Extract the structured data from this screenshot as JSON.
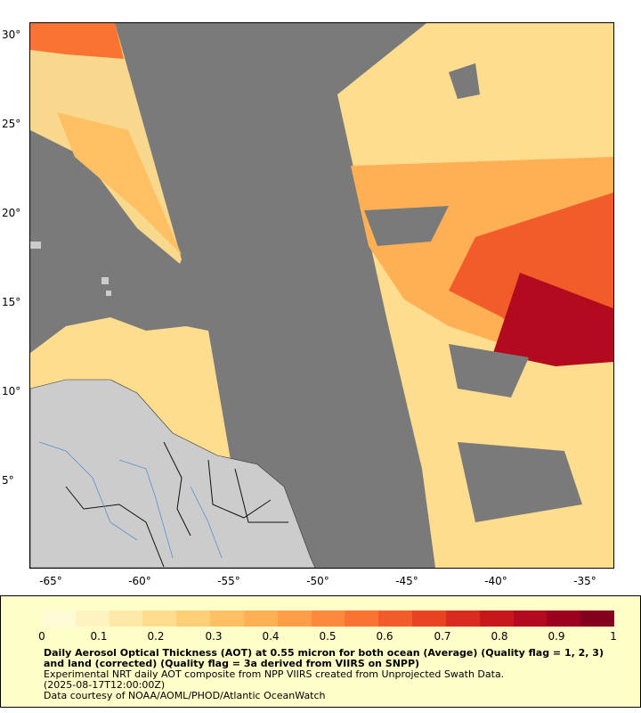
{
  "map": {
    "lat_ticks": [
      "30°",
      "25°",
      "20°",
      "15°",
      "10°",
      "5°"
    ],
    "lon_ticks": [
      "-65°",
      "-60°",
      "-55°",
      "-50°",
      "-45°",
      "-40°",
      "-35°"
    ],
    "colors": {
      "background": "#7a7a7a",
      "land": "#cccccc",
      "rivers": "#5b8fd0",
      "borders": "#111111"
    }
  },
  "legend": {
    "colorbar_ticks": [
      "0",
      "0.1",
      "0.2",
      "0.3",
      "0.4",
      "0.5",
      "0.6",
      "0.7",
      "0.8",
      "0.9",
      "1"
    ],
    "colorbar_colors": [
      "#fffbd6",
      "#fff3c0",
      "#ffe9a8",
      "#ffdd8e",
      "#ffcf78",
      "#ffc064",
      "#ffb055",
      "#ff9e48",
      "#fd8a3c",
      "#f97332",
      "#f25c2a",
      "#e84424",
      "#d92b1f",
      "#c8161d",
      "#b20a1e",
      "#9c0220",
      "#84001f"
    ],
    "title": "Daily Aerosol Optical Thickness (AOT) at 0.55 micron for both ocean (Average) (Quality flag = 1, 2, 3) and land (corrected) (Quality flag = 3a derived from VIIRS on SNPP)",
    "line2": "Experimental NRT daily AOT composite from NPP VIIRS created from Unprojected Swath Data.",
    "line3": "(2025-08-17T12:00:00Z)",
    "line4": "Data courtesy of NOAA/AOML/PHOD/Atlantic OceanWatch"
  }
}
